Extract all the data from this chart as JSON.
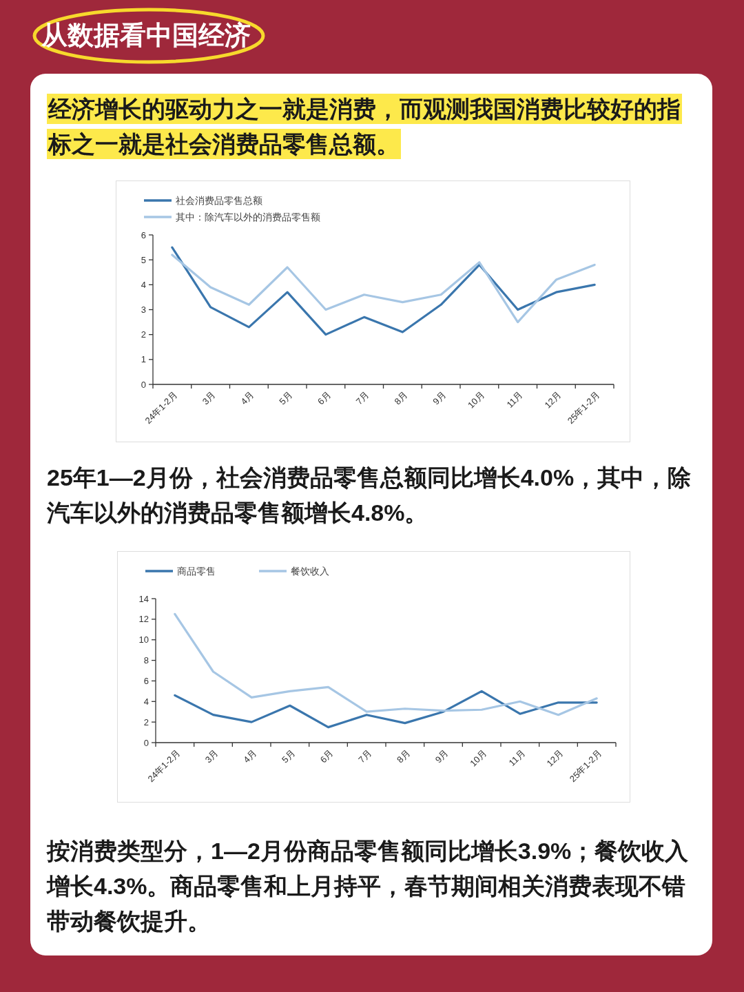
{
  "chart_data": [
    {
      "type": "line",
      "title": "从数据看中国经济",
      "subtitle": "经济增长的驱动力之一就是消费，而观测我国消费比较好的指标之一就是社会消费品零售总额。",
      "annotations": [
        "25年1—2月份，社会消费品零售总额同比增长4.0%，其中，除汽车以外的消费品零售额增长4.8%。"
      ],
      "categories": [
        "24年1-2月",
        "3月",
        "4月",
        "5月",
        "6月",
        "7月",
        "8月",
        "9月",
        "10月",
        "11月",
        "12月",
        "25年1-2月"
      ],
      "ylim": [
        0,
        6
      ],
      "yticks": [
        0,
        1,
        2,
        3,
        4,
        5,
        6
      ],
      "grid": false,
      "legend": "top left",
      "series": [
        {
          "name": "社会消费品零售总额",
          "color": "#3a76ad",
          "values": [
            5.5,
            3.1,
            2.3,
            3.7,
            2.0,
            2.7,
            2.1,
            3.2,
            4.8,
            3.0,
            3.7,
            4.0
          ]
        },
        {
          "name": " 其中：除汽车以外的消费品零售额",
          "color": "#a6c6e4",
          "values": [
            5.2,
            3.9,
            3.2,
            4.7,
            3.0,
            3.6,
            3.3,
            3.6,
            4.9,
            2.5,
            4.2,
            4.8
          ]
        }
      ]
    },
    {
      "type": "line",
      "annotations": [
        "按消费类型分，1—2月份商品零售额同比增长3.9%；餐饮收入增长4.3%。商品零售和上月持平，春节期间相关消费表现不错带动餐饮提升。"
      ],
      "categories": [
        "24年1-2月",
        "3月",
        "4月",
        "5月",
        "6月",
        "7月",
        "8月",
        "9月",
        "10月",
        "11月",
        "12月",
        "25年1-2月"
      ],
      "ylim": [
        0,
        14
      ],
      "yticks": [
        0,
        2,
        4,
        6,
        8,
        10,
        12,
        14
      ],
      "grid": false,
      "legend": "top left",
      "series": [
        {
          "name": "商品零售",
          "color": "#3a76ad",
          "values": [
            4.6,
            2.7,
            2.0,
            3.6,
            1.5,
            2.7,
            1.9,
            3.0,
            5.0,
            2.8,
            3.9,
            3.9
          ]
        },
        {
          "name": "餐饮收入",
          "color": "#a6c6e4",
          "values": [
            12.5,
            6.9,
            4.4,
            5.0,
            5.4,
            3.0,
            3.3,
            3.1,
            3.2,
            4.0,
            2.7,
            4.3
          ]
        }
      ]
    }
  ]
}
